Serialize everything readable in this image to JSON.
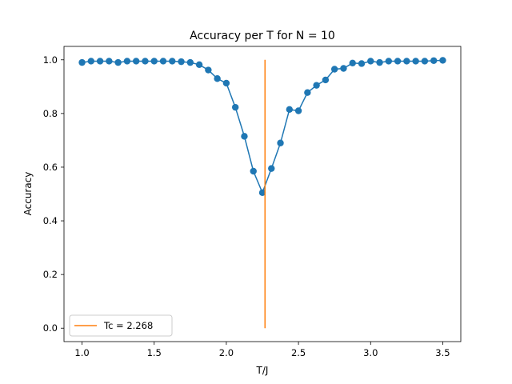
{
  "chart_data": {
    "type": "line",
    "title": "Accuracy per T for N = 10",
    "xlabel": "T/J",
    "ylabel": "Accuracy",
    "xlim": [
      0.875,
      3.625
    ],
    "ylim": [
      -0.05,
      1.05
    ],
    "xticks": [
      1.0,
      1.5,
      2.0,
      2.5,
      3.0,
      3.5
    ],
    "xtick_labels": [
      "1.0",
      "1.5",
      "2.0",
      "2.5",
      "3.0",
      "3.5"
    ],
    "yticks": [
      0.0,
      0.2,
      0.4,
      0.6,
      0.8,
      1.0
    ],
    "ytick_labels": [
      "0.0",
      "0.2",
      "0.4",
      "0.6",
      "0.8",
      "1.0"
    ],
    "grid": false,
    "legend": {
      "placement": "lower-left",
      "entries": [
        "Tc = 2.268"
      ]
    },
    "series": [
      {
        "style": "line-markers",
        "color": "#1f77b4",
        "x": [
          1.0,
          1.0625,
          1.125,
          1.1875,
          1.25,
          1.3125,
          1.375,
          1.4375,
          1.5,
          1.5625,
          1.625,
          1.6875,
          1.75,
          1.8125,
          1.875,
          1.9375,
          2.0,
          2.0625,
          2.125,
          2.1875,
          2.25,
          2.3125,
          2.375,
          2.4375,
          2.5,
          2.5625,
          2.625,
          2.6875,
          2.75,
          2.8125,
          2.875,
          2.9375,
          3.0,
          3.0625,
          3.125,
          3.1875,
          3.25,
          3.3125,
          3.375,
          3.4375,
          3.5
        ],
        "y": [
          0.99,
          0.995,
          0.995,
          0.995,
          0.99,
          0.995,
          0.995,
          0.995,
          0.995,
          0.995,
          0.995,
          0.993,
          0.99,
          0.982,
          0.962,
          0.93,
          0.913,
          0.823,
          0.715,
          0.585,
          0.505,
          0.595,
          0.69,
          0.815,
          0.81,
          0.878,
          0.905,
          0.925,
          0.965,
          0.968,
          0.988,
          0.986,
          0.995,
          0.99,
          0.995,
          0.995,
          0.995,
          0.995,
          0.995,
          0.997,
          0.998
        ]
      },
      {
        "name": "Tc = 2.268",
        "style": "line",
        "color": "#ff7f0e",
        "x": [
          2.268,
          2.268
        ],
        "y": [
          0.0,
          1.0
        ]
      }
    ]
  }
}
